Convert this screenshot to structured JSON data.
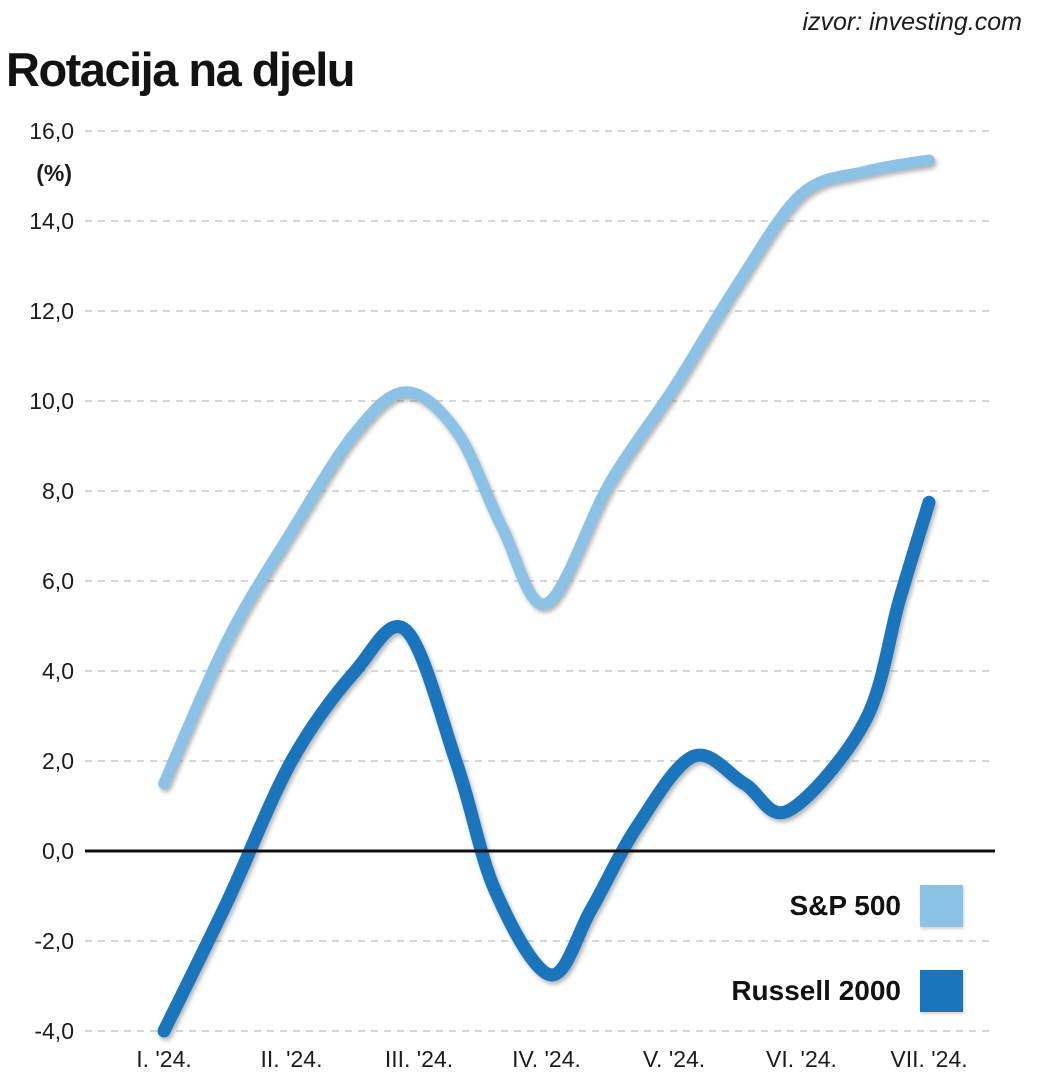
{
  "source": "izvor: investing.com",
  "title": "Rotacija na djelu",
  "chart_data": {
    "type": "line",
    "title": "Rotacija na djelu",
    "unit_label": "(%)",
    "xlabel": "",
    "ylabel": "(%)",
    "ylim": [
      -4,
      16
    ],
    "ytick_step": 2,
    "grid": "dashed horizontal gridlines, solid black zero line",
    "legend_position": "inside bottom-right",
    "x_tick_labels": [
      "I. '24.",
      "II. '24.",
      "III. '24.",
      "IV. '24.",
      "V. '24.",
      "VI. '24.",
      "VII. '24."
    ],
    "y_ticks": [
      {
        "value": 16,
        "label": "16,0"
      },
      {
        "value": 14,
        "label": "14,0"
      },
      {
        "value": 12,
        "label": "12,0"
      },
      {
        "value": 10,
        "label": "10,0"
      },
      {
        "value": 8,
        "label": "8,0"
      },
      {
        "value": 6,
        "label": "6,0"
      },
      {
        "value": 4,
        "label": "4,0"
      },
      {
        "value": 2,
        "label": "2,0"
      },
      {
        "value": 0,
        "label": "0,0"
      },
      {
        "value": -2,
        "label": "-2,0"
      },
      {
        "value": -4,
        "label": "-4,0"
      }
    ],
    "series": [
      {
        "name": "S&P 500",
        "color": "#8CC2E6",
        "points": [
          [
            1.0,
            1.5
          ],
          [
            1.5,
            4.7
          ],
          [
            2.0,
            7.1
          ],
          [
            2.5,
            9.3
          ],
          [
            2.9,
            10.2
          ],
          [
            3.3,
            9.3
          ],
          [
            3.65,
            7.2
          ],
          [
            4.0,
            5.5
          ],
          [
            4.5,
            8.2
          ],
          [
            5.0,
            10.3
          ],
          [
            5.5,
            12.6
          ],
          [
            6.0,
            14.6
          ],
          [
            6.5,
            15.1
          ],
          [
            7.0,
            15.35
          ]
        ]
      },
      {
        "name": "Russell 2000",
        "color": "#1B75BC",
        "points": [
          [
            1.0,
            -4.0
          ],
          [
            1.5,
            -1.1
          ],
          [
            2.0,
            2.0
          ],
          [
            2.5,
            4.0
          ],
          [
            2.9,
            4.9
          ],
          [
            3.3,
            1.9
          ],
          [
            3.6,
            -0.9
          ],
          [
            4.03,
            -2.75
          ],
          [
            4.35,
            -1.3
          ],
          [
            4.7,
            0.5
          ],
          [
            5.15,
            2.1
          ],
          [
            5.55,
            1.5
          ],
          [
            5.9,
            0.9
          ],
          [
            6.5,
            2.9
          ],
          [
            6.77,
            5.6
          ],
          [
            7.0,
            7.75
          ]
        ]
      }
    ],
    "colors": {
      "gridline": "#c9c9c9",
      "zero_line": "#111111",
      "text": "#1c1c1c"
    }
  }
}
